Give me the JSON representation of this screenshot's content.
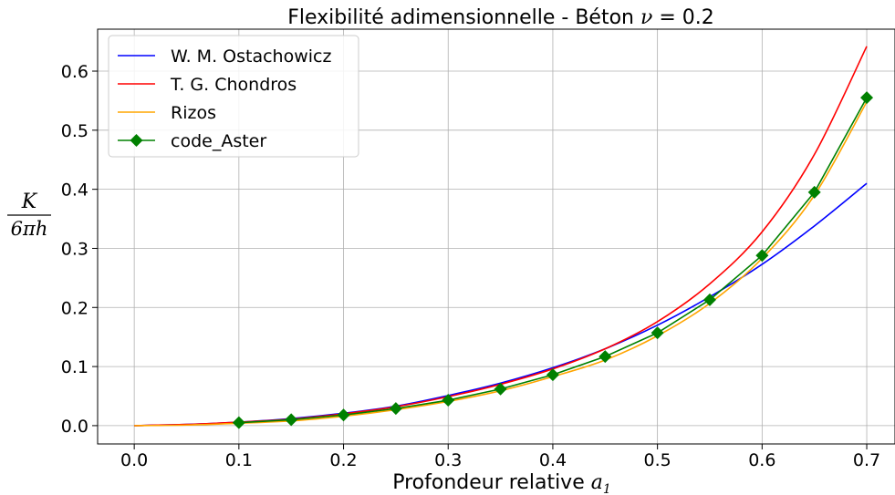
{
  "chart_data": {
    "type": "line",
    "title": {
      "text": "Flexibilité adimensionnelle - Béton ",
      "math_symbol": "ν",
      "math_rest": " = 0.2"
    },
    "xlabel": {
      "text": "Profondeur relative ",
      "math_symbol": "a",
      "math_subscript": "1"
    },
    "ylabel": {
      "numerator": "K",
      "denominator": "6πh"
    },
    "xlim": [
      -0.035,
      0.727
    ],
    "ylim": [
      -0.031,
      0.671
    ],
    "xticks": [
      0.0,
      0.1,
      0.2,
      0.3,
      0.4,
      0.5,
      0.6,
      0.7
    ],
    "xtick_labels": [
      "0.0",
      "0.1",
      "0.2",
      "0.3",
      "0.4",
      "0.5",
      "0.6",
      "0.7"
    ],
    "yticks": [
      0.0,
      0.1,
      0.2,
      0.3,
      0.4,
      0.5,
      0.6
    ],
    "ytick_labels": [
      "0.0",
      "0.1",
      "0.2",
      "0.3",
      "0.4",
      "0.5",
      "0.6"
    ],
    "grid": true,
    "legend_position": "upper-left",
    "x": [
      0.0,
      0.05,
      0.1,
      0.15,
      0.2,
      0.25,
      0.3,
      0.35,
      0.4,
      0.45,
      0.5,
      0.55,
      0.6,
      0.65,
      0.7
    ],
    "series": [
      {
        "name": "W. M. Ostachowicz",
        "color": "#0000ff",
        "marker": "none",
        "values": [
          0.0,
          0.002,
          0.006,
          0.012,
          0.021,
          0.033,
          0.051,
          0.072,
          0.098,
          0.13,
          0.17,
          0.218,
          0.273,
          0.338,
          0.41
        ]
      },
      {
        "name": "T. G. Chondros",
        "color": "#ff0000",
        "marker": "none",
        "values": [
          0.0,
          0.002,
          0.006,
          0.011,
          0.02,
          0.032,
          0.049,
          0.07,
          0.096,
          0.13,
          0.176,
          0.24,
          0.328,
          0.459,
          0.642
        ]
      },
      {
        "name": "Rizos",
        "color": "#ffa500",
        "marker": "none",
        "values": [
          0.0,
          0.001,
          0.004,
          0.008,
          0.016,
          0.027,
          0.041,
          0.059,
          0.083,
          0.111,
          0.152,
          0.207,
          0.283,
          0.39,
          0.548
        ]
      },
      {
        "name": "code_Aster",
        "color": "#008000",
        "marker": "diamond",
        "x": [
          0.1,
          0.15,
          0.2,
          0.25,
          0.3,
          0.35,
          0.4,
          0.45,
          0.5,
          0.55,
          0.6,
          0.65,
          0.7
        ],
        "values": [
          0.005,
          0.01,
          0.018,
          0.029,
          0.043,
          0.062,
          0.086,
          0.117,
          0.157,
          0.213,
          0.288,
          0.395,
          0.555
        ]
      }
    ]
  }
}
